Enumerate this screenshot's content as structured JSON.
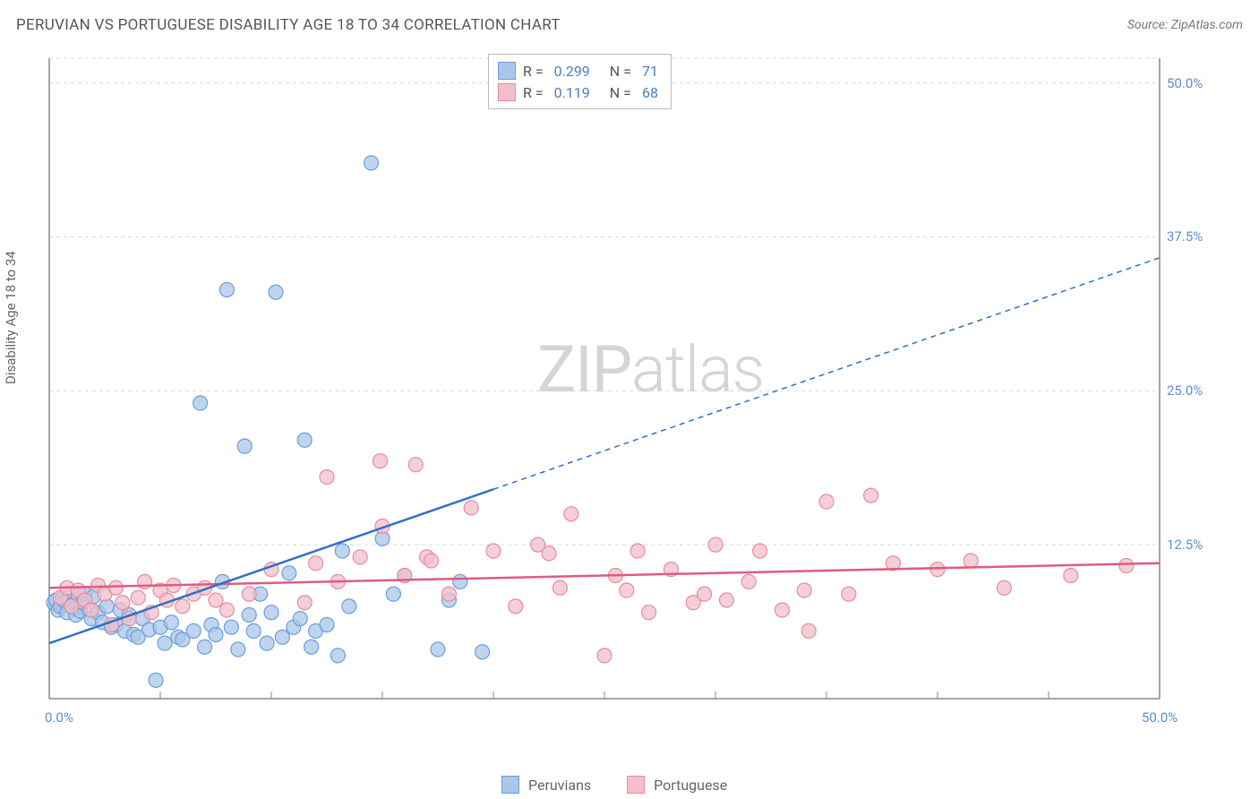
{
  "title": "PERUVIAN VS PORTUGUESE DISABILITY AGE 18 TO 34 CORRELATION CHART",
  "source": "Source: ZipAtlas.com",
  "y_axis_label": "Disability Age 18 to 34",
  "watermark": {
    "zip": "ZIP",
    "atlas": "atlas"
  },
  "chart": {
    "type": "scatter",
    "xlim": [
      0,
      50
    ],
    "ylim": [
      0,
      52
    ],
    "x_tick_labels": {
      "min": "0.0%",
      "max": "50.0%"
    },
    "x_minor_tick_step": 5,
    "y_ticks": [
      12.5,
      25.0,
      37.5,
      50.0
    ],
    "y_tick_labels": [
      "12.5%",
      "25.0%",
      "37.5%",
      "50.0%"
    ],
    "grid_color": "#d8d8d8",
    "grid_dash": "4,4",
    "axis_color": "#888888",
    "tick_label_color": "#5b8fd0",
    "background_color": "#ffffff",
    "marker_radius": 8,
    "marker_stroke_width": 1.2,
    "label_fontsize": 15
  },
  "series": [
    {
      "name": "Peruvians",
      "r_value": "0.299",
      "n_value": "71",
      "fill": "#a9c7e8",
      "stroke": "#6a9edc",
      "line_color": "#2f6fc7",
      "line_width": 2.5,
      "trend": {
        "x1": 0,
        "y1": 4.5,
        "x2": 20,
        "y2": 17,
        "ext_x2": 50,
        "ext_y2": 35.8
      },
      "points": [
        [
          0.2,
          7.8
        ],
        [
          0.3,
          8.0
        ],
        [
          0.4,
          7.2
        ],
        [
          0.5,
          7.5
        ],
        [
          0.6,
          8.1
        ],
        [
          0.7,
          7.9
        ],
        [
          0.8,
          7.0
        ],
        [
          0.9,
          8.2
        ],
        [
          1.0,
          7.6
        ],
        [
          1.1,
          7.3
        ],
        [
          1.2,
          6.8
        ],
        [
          1.3,
          8.4
        ],
        [
          1.4,
          7.1
        ],
        [
          1.5,
          7.8
        ],
        [
          1.6,
          8.5
        ],
        [
          1.8,
          7.2
        ],
        [
          1.9,
          6.5
        ],
        [
          2.0,
          8.3
        ],
        [
          2.2,
          7.0
        ],
        [
          2.4,
          6.2
        ],
        [
          2.6,
          7.5
        ],
        [
          2.8,
          5.8
        ],
        [
          3.0,
          6.0
        ],
        [
          3.2,
          7.2
        ],
        [
          3.4,
          5.5
        ],
        [
          3.6,
          6.8
        ],
        [
          3.8,
          5.2
        ],
        [
          4.0,
          5.0
        ],
        [
          4.2,
          6.5
        ],
        [
          4.5,
          5.6
        ],
        [
          4.8,
          1.5
        ],
        [
          5.0,
          5.8
        ],
        [
          5.2,
          4.5
        ],
        [
          5.5,
          6.2
        ],
        [
          5.8,
          5.0
        ],
        [
          6.0,
          4.8
        ],
        [
          6.5,
          5.5
        ],
        [
          6.8,
          24.0
        ],
        [
          7.0,
          4.2
        ],
        [
          7.3,
          6.0
        ],
        [
          7.5,
          5.2
        ],
        [
          7.8,
          9.5
        ],
        [
          8.0,
          33.2
        ],
        [
          8.2,
          5.8
        ],
        [
          8.5,
          4.0
        ],
        [
          8.8,
          20.5
        ],
        [
          9.0,
          6.8
        ],
        [
          9.2,
          5.5
        ],
        [
          9.5,
          8.5
        ],
        [
          9.8,
          4.5
        ],
        [
          10.0,
          7.0
        ],
        [
          10.2,
          33.0
        ],
        [
          10.5,
          5.0
        ],
        [
          10.8,
          10.2
        ],
        [
          11.0,
          5.8
        ],
        [
          11.3,
          6.5
        ],
        [
          11.5,
          21.0
        ],
        [
          11.8,
          4.2
        ],
        [
          12.0,
          5.5
        ],
        [
          12.5,
          6.0
        ],
        [
          13.0,
          3.5
        ],
        [
          13.2,
          12.0
        ],
        [
          13.5,
          7.5
        ],
        [
          14.5,
          43.5
        ],
        [
          15.0,
          13.0
        ],
        [
          15.5,
          8.5
        ],
        [
          16.0,
          10.0
        ],
        [
          17.5,
          4.0
        ],
        [
          18.0,
          8.0
        ],
        [
          18.5,
          9.5
        ],
        [
          19.5,
          3.8
        ]
      ]
    },
    {
      "name": "Portuguese",
      "r_value": "0.119",
      "n_value": "68",
      "fill": "#f2bfcb",
      "stroke": "#e88ba2",
      "line_color": "#e05b7e",
      "line_width": 2.5,
      "trend": {
        "x1": 0,
        "y1": 9.0,
        "x2": 50,
        "y2": 11.0
      },
      "points": [
        [
          0.5,
          8.2
        ],
        [
          0.8,
          9.0
        ],
        [
          1.0,
          7.5
        ],
        [
          1.3,
          8.8
        ],
        [
          1.6,
          8.0
        ],
        [
          1.9,
          7.2
        ],
        [
          2.2,
          9.2
        ],
        [
          2.5,
          8.5
        ],
        [
          2.8,
          6.0
        ],
        [
          3.0,
          9.0
        ],
        [
          3.3,
          7.8
        ],
        [
          3.6,
          6.5
        ],
        [
          4.0,
          8.2
        ],
        [
          4.3,
          9.5
        ],
        [
          4.6,
          7.0
        ],
        [
          5.0,
          8.8
        ],
        [
          5.3,
          8.0
        ],
        [
          5.6,
          9.2
        ],
        [
          6.0,
          7.5
        ],
        [
          6.5,
          8.5
        ],
        [
          7.0,
          9.0
        ],
        [
          7.5,
          8.0
        ],
        [
          8.0,
          7.2
        ],
        [
          9.0,
          8.5
        ],
        [
          10.0,
          10.5
        ],
        [
          11.5,
          7.8
        ],
        [
          12.0,
          11.0
        ],
        [
          12.5,
          18.0
        ],
        [
          13.0,
          9.5
        ],
        [
          14.0,
          11.5
        ],
        [
          14.9,
          19.3
        ],
        [
          15.0,
          14.0
        ],
        [
          16.0,
          10.0
        ],
        [
          16.5,
          19.0
        ],
        [
          17.0,
          11.5
        ],
        [
          17.2,
          11.2
        ],
        [
          18.0,
          8.5
        ],
        [
          19.0,
          15.5
        ],
        [
          20.0,
          12.0
        ],
        [
          21.0,
          7.5
        ],
        [
          22.0,
          12.5
        ],
        [
          22.5,
          11.8
        ],
        [
          23.0,
          9.0
        ],
        [
          23.5,
          15.0
        ],
        [
          25.0,
          3.5
        ],
        [
          25.5,
          10.0
        ],
        [
          26.0,
          8.8
        ],
        [
          26.5,
          12.0
        ],
        [
          27.0,
          7.0
        ],
        [
          28.0,
          10.5
        ],
        [
          29.0,
          7.8
        ],
        [
          29.5,
          8.5
        ],
        [
          30.0,
          12.5
        ],
        [
          30.5,
          8.0
        ],
        [
          31.5,
          9.5
        ],
        [
          32.0,
          12.0
        ],
        [
          33.0,
          7.2
        ],
        [
          34.0,
          8.8
        ],
        [
          34.2,
          5.5
        ],
        [
          35.0,
          16.0
        ],
        [
          36.0,
          8.5
        ],
        [
          37.0,
          16.5
        ],
        [
          38.0,
          11.0
        ],
        [
          40.0,
          10.5
        ],
        [
          41.5,
          11.2
        ],
        [
          43.0,
          9.0
        ],
        [
          46.0,
          10.0
        ],
        [
          48.5,
          10.8
        ]
      ]
    }
  ],
  "legend_top": {
    "r_label": "R =",
    "n_label": "N ="
  },
  "legend_bottom_labels": [
    "Peruvians",
    "Portuguese"
  ]
}
